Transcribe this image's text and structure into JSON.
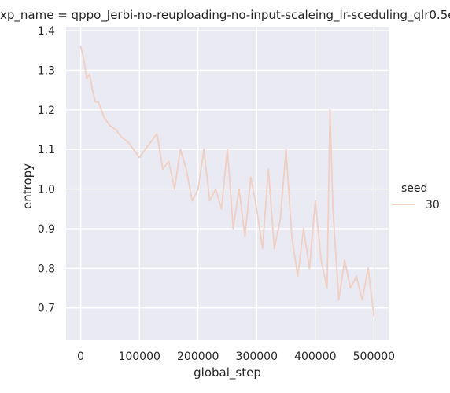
{
  "chart_data": {
    "type": "line",
    "title": "xp_name = qppo_Jerbi-no-reuploading-no-input-scaleing_lr-sceduling_qlr0.5e",
    "xlabel": "global_step",
    "ylabel": "entropy",
    "xlim": [
      -25000,
      525000
    ],
    "ylim": [
      0.62,
      1.41
    ],
    "x_ticks": [
      0,
      100000,
      200000,
      300000,
      400000,
      500000
    ],
    "x_tick_labels": [
      "0",
      "100000",
      "200000",
      "300000",
      "400000",
      "500000"
    ],
    "y_ticks": [
      0.7,
      0.8,
      0.9,
      1.0,
      1.1,
      1.2,
      1.3,
      1.4
    ],
    "y_tick_labels": [
      "0.7",
      "0.8",
      "0.9",
      "1.0",
      "1.1",
      "1.2",
      "1.3",
      "1.4"
    ],
    "grid": true,
    "legend": {
      "title": "seed",
      "placement": "right",
      "entries": [
        "30"
      ]
    },
    "series": [
      {
        "name": "30",
        "color": "#f0cfc4",
        "x": [
          0,
          5000,
          10000,
          15000,
          20000,
          25000,
          30000,
          40000,
          50000,
          60000,
          70000,
          80000,
          90000,
          100000,
          110000,
          120000,
          130000,
          140000,
          150000,
          160000,
          170000,
          180000,
          190000,
          200000,
          210000,
          220000,
          230000,
          240000,
          250000,
          260000,
          270000,
          280000,
          290000,
          300000,
          310000,
          320000,
          330000,
          340000,
          350000,
          360000,
          370000,
          380000,
          390000,
          400000,
          410000,
          420000,
          425000,
          430000,
          440000,
          450000,
          460000,
          470000,
          480000,
          490000,
          500000
        ],
        "y": [
          1.36,
          1.33,
          1.28,
          1.29,
          1.25,
          1.22,
          1.22,
          1.18,
          1.16,
          1.15,
          1.13,
          1.12,
          1.1,
          1.08,
          1.1,
          1.12,
          1.14,
          1.05,
          1.07,
          1.0,
          1.1,
          1.05,
          0.97,
          1.0,
          1.1,
          0.97,
          1.0,
          0.95,
          1.1,
          0.9,
          1.0,
          0.88,
          1.03,
          0.95,
          0.85,
          1.05,
          0.85,
          0.92,
          1.1,
          0.88,
          0.78,
          0.9,
          0.8,
          0.97,
          0.82,
          0.75,
          1.2,
          0.95,
          0.72,
          0.82,
          0.75,
          0.78,
          0.72,
          0.8,
          0.68
        ]
      }
    ]
  }
}
